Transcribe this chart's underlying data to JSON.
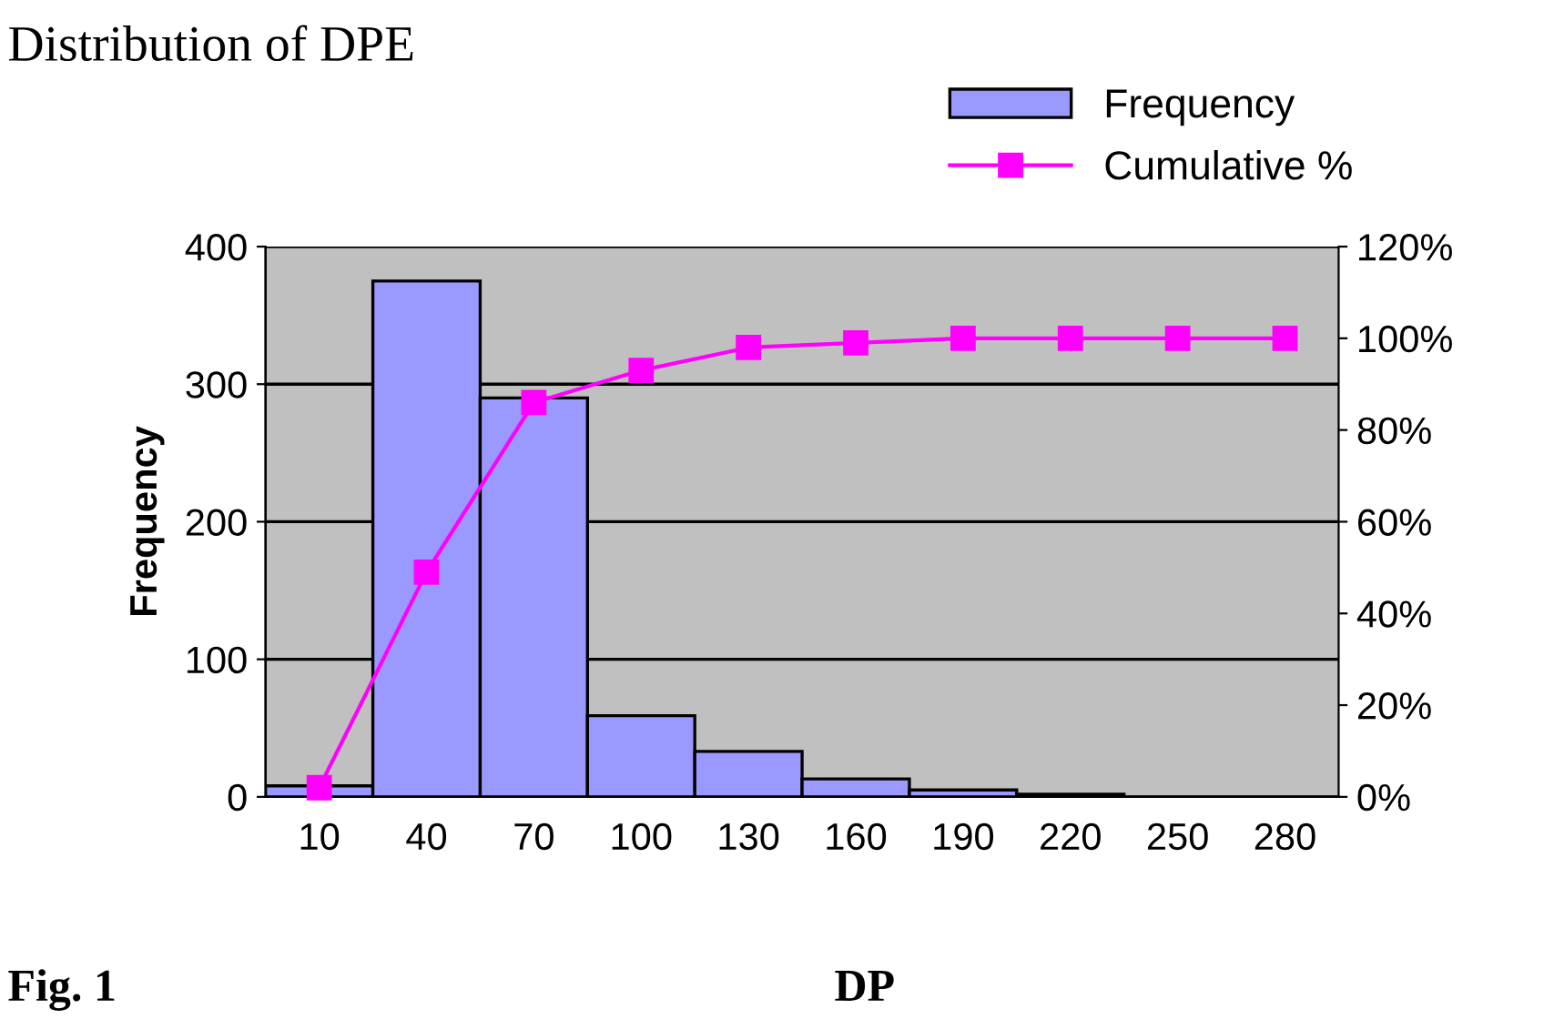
{
  "chart_data": {
    "type": "bar",
    "title": "Distribution of DPE",
    "xlabel": "DP",
    "ylabel": "Frequency",
    "categories": [
      "10",
      "40",
      "70",
      "100",
      "130",
      "160",
      "190",
      "220",
      "250",
      "280"
    ],
    "series": [
      {
        "name": "Frequency",
        "color": "#9999ff",
        "values": [
          8,
          375,
          290,
          59,
          33,
          13,
          5,
          2,
          0,
          0
        ]
      },
      {
        "name": "Cumulative %",
        "type": "line",
        "axis": "y2",
        "color": "#ff00ff",
        "marker": "square",
        "values": [
          2,
          49,
          86,
          93,
          98,
          99,
          100,
          100,
          100,
          100
        ]
      }
    ],
    "ylim": [
      0,
      400
    ],
    "yticks": [
      0,
      100,
      200,
      300,
      400
    ],
    "y2lim": [
      0,
      120
    ],
    "y2ticks": [
      {
        "value": 0,
        "label": "0%"
      },
      {
        "value": 20,
        "label": "20%"
      },
      {
        "value": 40,
        "label": "40%"
      },
      {
        "value": 60,
        "label": "60%"
      },
      {
        "value": 80,
        "label": "80%"
      },
      {
        "value": 100,
        "label": "100%"
      },
      {
        "value": 120,
        "label": "120%"
      }
    ],
    "grid": "y",
    "legend": "top right",
    "annotations": [
      "Fig. 1"
    ]
  }
}
